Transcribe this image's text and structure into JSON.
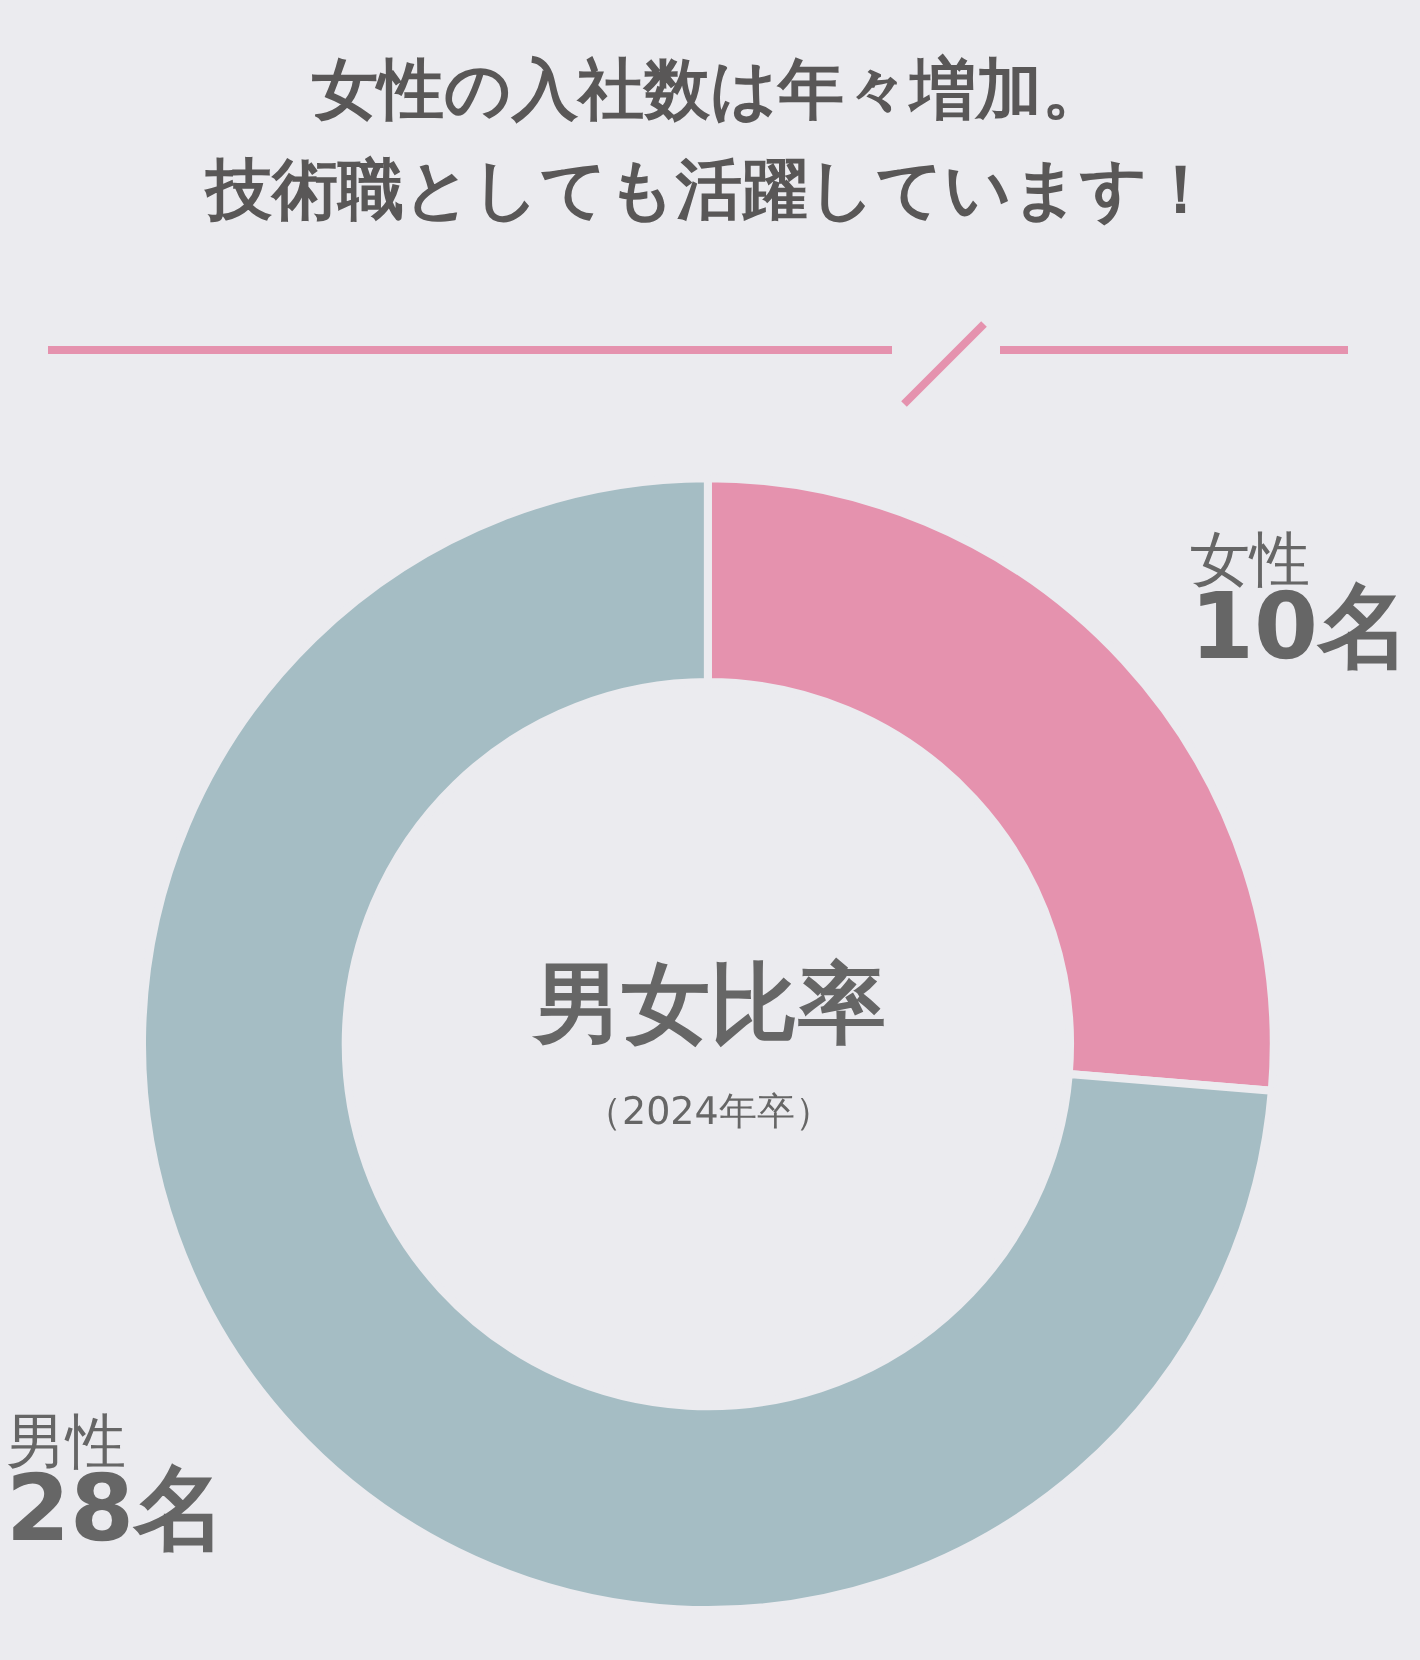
{
  "chart_data": {
    "type": "donut",
    "title": "女性の入社数は年々増加。",
    "subtitle": "技術職としても活躍しています！",
    "categories": [
      "女性",
      "男性"
    ],
    "values": [
      10,
      28
    ],
    "value_labels": [
      "10名",
      "28名"
    ],
    "colors": [
      "#e592ae",
      "#a5bdc4"
    ],
    "annotations": [
      "男女比率",
      "（2024年卒）"
    ],
    "legend": false
  }
}
